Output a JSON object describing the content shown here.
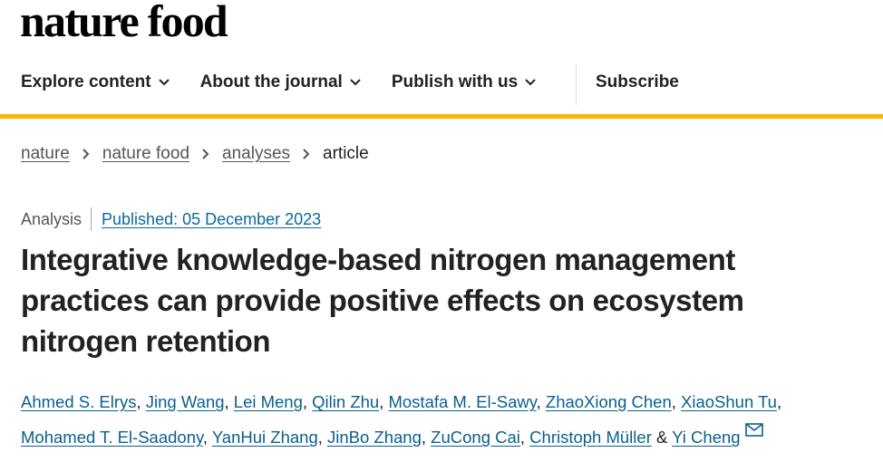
{
  "header": {
    "logo": "nature food",
    "nav": [
      "Explore content",
      "About the journal",
      "Publish with us"
    ],
    "subscribe": "Subscribe"
  },
  "breadcrumbs": [
    "nature",
    "nature food",
    "analyses",
    "article"
  ],
  "article": {
    "type": "Analysis",
    "published": "Published: 05 December 2023",
    "title": "Integrative knowledge-based nitrogen management practices can provide positive effects on ecosystem nitrogen retention",
    "authors": [
      "Ahmed S. Elrys",
      "Jing Wang",
      "Lei Meng",
      "Qilin Zhu",
      "Mostafa M. El-Sawy",
      "ZhaoXiong Chen",
      "XiaoShun Tu",
      "Mohamed T. El-Saadony",
      "YanHui Zhang",
      "JinBo Zhang",
      "ZuCong Cai",
      "Christoph Müller",
      "Yi Cheng"
    ],
    "separator": ",",
    "last_separator": "&"
  }
}
